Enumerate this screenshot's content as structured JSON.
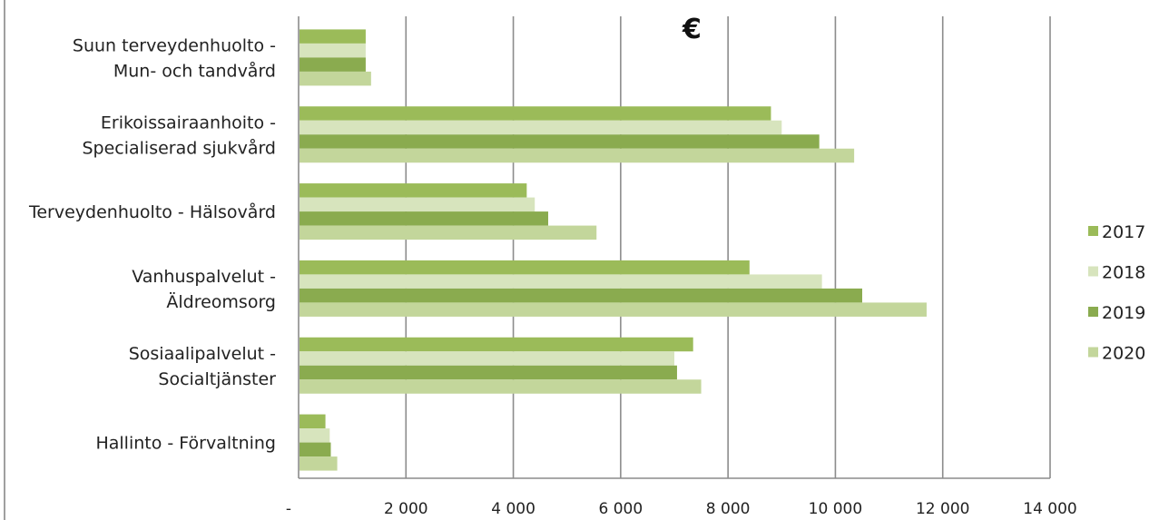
{
  "chart_data": {
    "type": "bar",
    "orientation": "horizontal",
    "title": "€",
    "categories": [
      [
        "Suun terveydenhuolto -",
        "Mun- och tandvård"
      ],
      [
        "Erikoissairaanhoito -",
        "Specialiserad sjukvård"
      ],
      [
        "Terveydenhuolto - Hälsovård"
      ],
      [
        "Vanhuspalvelut -",
        "Äldreomsorg"
      ],
      [
        "Sosiaalipalvelut -",
        "Socialtjänster"
      ],
      [
        "Hallinto - Förvaltning"
      ]
    ],
    "series": [
      {
        "name": "2017",
        "color": "#9bbb59",
        "values": [
          1250,
          8800,
          4250,
          8400,
          7350,
          500
        ]
      },
      {
        "name": "2018",
        "color": "#d7e4bd",
        "values": [
          1250,
          9000,
          4400,
          9750,
          7000,
          580
        ]
      },
      {
        "name": "2019",
        "color": "#8aab4f",
        "values": [
          1250,
          9700,
          4650,
          10500,
          7050,
          600
        ]
      },
      {
        "name": "2020",
        "color": "#c3d69b",
        "values": [
          1350,
          10350,
          5550,
          11700,
          7500,
          720
        ]
      }
    ],
    "xlim": [
      0,
      14000
    ],
    "x_ticks": [
      0,
      2000,
      4000,
      6000,
      8000,
      10000,
      12000,
      14000
    ],
    "x_tick_labels": [
      "-",
      "2 000",
      "4 000",
      "6 000",
      "8 000",
      "10 000",
      "12 000",
      "14 000"
    ],
    "grid": "vertical",
    "legend_position": "right"
  }
}
